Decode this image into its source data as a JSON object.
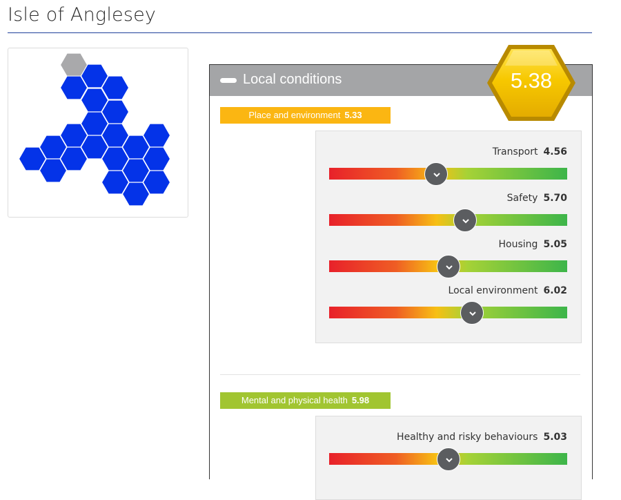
{
  "page": {
    "title": "Isle of Anglesey"
  },
  "map": {
    "icon": "hex-map-icon",
    "filled_color": "#0433e8",
    "muted_color": "#a9a9ab"
  },
  "panel": {
    "title": "Local conditions",
    "score": "5.38",
    "score_color": "#f5c400"
  },
  "categories": [
    {
      "label": "Place and environment",
      "value": "5.33",
      "color": "#fbb612",
      "metrics": [
        {
          "label": "Transport",
          "value": "4.56",
          "level": 0.45
        },
        {
          "label": "Safety",
          "value": "5.70",
          "level": 0.57
        },
        {
          "label": "Housing",
          "value": "5.05",
          "level": 0.5
        },
        {
          "label": "Local environment",
          "value": "6.02",
          "level": 0.6
        }
      ]
    },
    {
      "label": "Mental and physical health",
      "value": "5.98",
      "color": "#a1c531",
      "metrics": [
        {
          "label": "Healthy and risky behaviours",
          "value": "5.03",
          "level": 0.5
        }
      ]
    }
  ]
}
